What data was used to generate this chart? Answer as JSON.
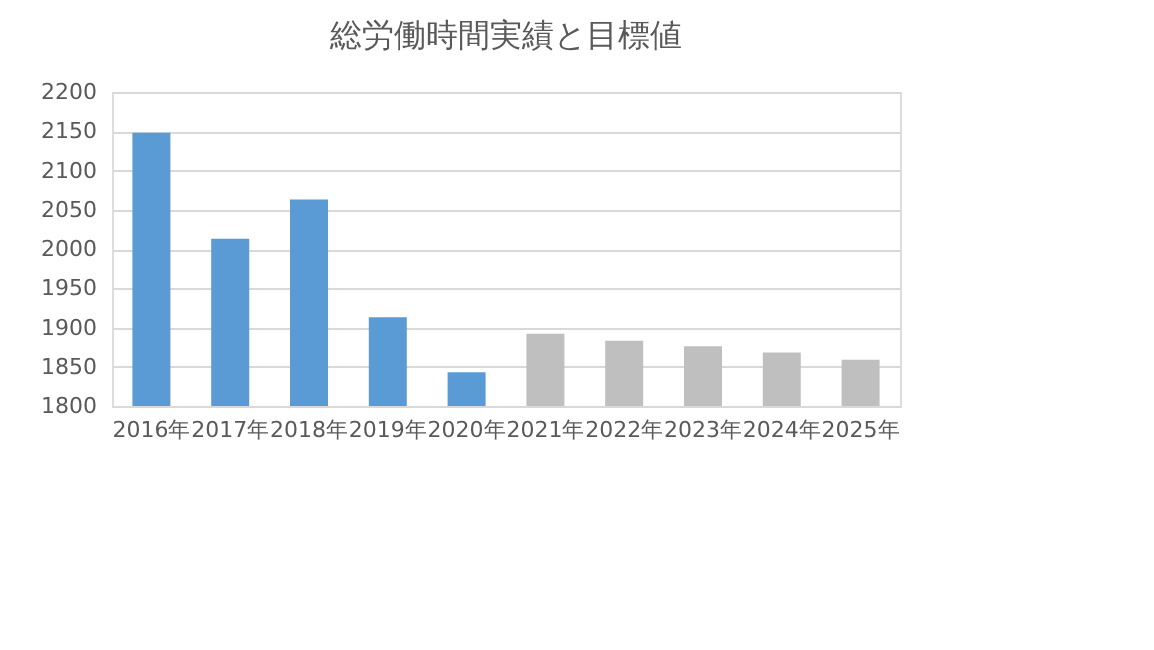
{
  "chart_data": {
    "type": "bar",
    "title": "総労働時間実績と目標値",
    "categories": [
      "2016年",
      "2017年",
      "2018年",
      "2019年",
      "2020年",
      "2021年",
      "2022年",
      "2023年",
      "2024年",
      "2025年"
    ],
    "values": [
      2148,
      2013,
      2063,
      1913,
      1843,
      1892,
      1883,
      1876,
      1868,
      1859
    ],
    "colors": [
      "#5b9bd5",
      "#5b9bd5",
      "#5b9bd5",
      "#5b9bd5",
      "#5b9bd5",
      "#bfbfbf",
      "#bfbfbf",
      "#bfbfbf",
      "#bfbfbf",
      "#bfbfbf"
    ],
    "ylim": [
      1800,
      2200
    ],
    "yticks": [
      1800,
      1850,
      1900,
      1950,
      2000,
      2050,
      2100,
      2150,
      2200
    ],
    "grid": "y",
    "legend": false
  }
}
